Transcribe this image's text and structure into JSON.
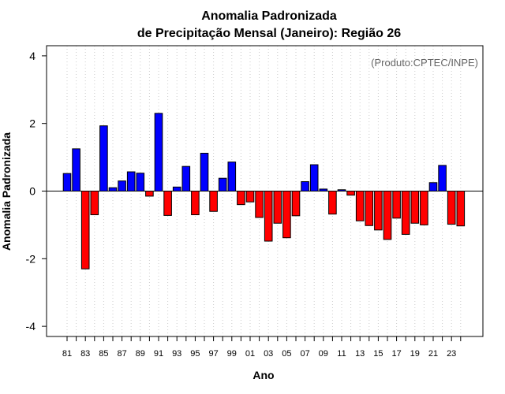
{
  "chart_data": {
    "type": "bar",
    "title": "Anomalia Padronizada",
    "subtitle": "de Precipitação Mensal (Janeiro): Região 26",
    "xlabel": "Ano",
    "ylabel": "Anomalia Padronizada",
    "credit": "(Produto:CPTEC/INPE)",
    "ylim": [
      -4.3,
      4.3
    ],
    "yticks": [
      -4,
      -2,
      0,
      2,
      4
    ],
    "ytick_labels": [
      "-4",
      "-2",
      "0",
      "2",
      "4"
    ],
    "grid": "vertical-dotted",
    "positive_color": "#0000ff",
    "negative_color": "#ff0000",
    "categories": [
      "81",
      "82",
      "83",
      "84",
      "85",
      "86",
      "87",
      "88",
      "89",
      "90",
      "91",
      "92",
      "93",
      "94",
      "95",
      "96",
      "97",
      "98",
      "99",
      "00",
      "01",
      "02",
      "03",
      "04",
      "05",
      "06",
      "07",
      "08",
      "09",
      "10",
      "11",
      "12",
      "13",
      "14",
      "15",
      "16",
      "17",
      "18",
      "19",
      "20",
      "21",
      "22",
      "23",
      "24"
    ],
    "xtick_labels": [
      "81",
      "83",
      "85",
      "87",
      "89",
      "91",
      "93",
      "95",
      "97",
      "99",
      "01",
      "03",
      "05",
      "07",
      "09",
      "11",
      "13",
      "15",
      "17",
      "19",
      "21",
      "23"
    ],
    "values": [
      0.52,
      1.25,
      -2.3,
      -0.7,
      1.93,
      0.1,
      0.3,
      0.57,
      0.53,
      -0.15,
      2.3,
      -0.72,
      0.12,
      0.73,
      -0.7,
      1.12,
      -0.6,
      0.38,
      0.86,
      -0.4,
      -0.32,
      -0.78,
      -1.48,
      -0.95,
      -1.38,
      -0.73,
      0.28,
      0.78,
      0.06,
      -0.68,
      0.04,
      -0.12,
      -0.88,
      -1.02,
      -1.15,
      -1.43,
      -0.8,
      -1.28,
      -0.95,
      -1.0,
      0.25,
      0.76,
      -0.98,
      -1.03
    ]
  }
}
